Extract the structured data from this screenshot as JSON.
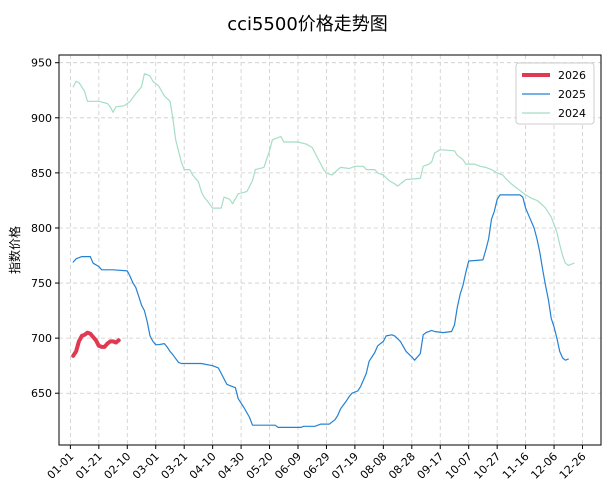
{
  "chart_data": {
    "type": "line",
    "title": "cci5500价格走势图",
    "xlabel": "",
    "ylabel": "指数价格",
    "ylim": [
      603,
      957
    ],
    "yticks": [
      650,
      700,
      750,
      800,
      850,
      900,
      950
    ],
    "x_tick_labels": [
      "01-01",
      "01-21",
      "02-10",
      "03-01",
      "03-21",
      "04-10",
      "04-30",
      "05-20",
      "06-09",
      "06-29",
      "07-19",
      "08-08",
      "08-28",
      "09-17",
      "10-07",
      "10-27",
      "11-16",
      "12-06",
      "12-26"
    ],
    "x_tick_days": [
      0,
      20,
      40,
      60,
      80,
      100,
      120,
      140,
      160,
      180,
      200,
      220,
      240,
      260,
      280,
      300,
      320,
      340,
      360
    ],
    "xlim": [
      -8,
      373
    ],
    "grid": true,
    "legend_position": "top-right",
    "series": [
      {
        "name": "2026",
        "color": "#e03a52",
        "width": 4,
        "points": [
          [
            2,
            684
          ],
          [
            4,
            688
          ],
          [
            6,
            697
          ],
          [
            8,
            702
          ],
          [
            10,
            703
          ],
          [
            12,
            705
          ],
          [
            14,
            704
          ],
          [
            16,
            701
          ],
          [
            18,
            698
          ],
          [
            20,
            693
          ],
          [
            22,
            692
          ],
          [
            24,
            692
          ],
          [
            26,
            695
          ],
          [
            28,
            697
          ],
          [
            30,
            697
          ],
          [
            32,
            696
          ],
          [
            34,
            698
          ]
        ]
      },
      {
        "name": "2025",
        "color": "#2382d4",
        "width": 1.2,
        "points": [
          [
            2,
            769
          ],
          [
            4,
            772
          ],
          [
            8,
            774
          ],
          [
            14,
            774
          ],
          [
            16,
            768
          ],
          [
            20,
            765
          ],
          [
            22,
            762
          ],
          [
            30,
            762
          ],
          [
            40,
            761
          ],
          [
            42,
            756
          ],
          [
            44,
            750
          ],
          [
            46,
            746
          ],
          [
            48,
            738
          ],
          [
            50,
            730
          ],
          [
            52,
            725
          ],
          [
            54,
            715
          ],
          [
            56,
            702
          ],
          [
            58,
            697
          ],
          [
            60,
            694
          ],
          [
            62,
            694
          ],
          [
            66,
            695
          ],
          [
            68,
            692
          ],
          [
            70,
            688
          ],
          [
            72,
            685
          ],
          [
            76,
            678
          ],
          [
            78,
            677
          ],
          [
            92,
            677
          ],
          [
            100,
            675
          ],
          [
            104,
            673
          ],
          [
            106,
            668
          ],
          [
            110,
            658
          ],
          [
            116,
            655
          ],
          [
            118,
            645
          ],
          [
            122,
            637
          ],
          [
            126,
            628
          ],
          [
            128,
            621
          ],
          [
            144,
            621
          ],
          [
            146,
            619
          ],
          [
            162,
            619
          ],
          [
            164,
            620
          ],
          [
            172,
            620
          ],
          [
            176,
            622
          ],
          [
            182,
            622
          ],
          [
            186,
            626
          ],
          [
            188,
            630
          ],
          [
            190,
            636
          ],
          [
            194,
            643
          ],
          [
            196,
            647
          ],
          [
            198,
            650
          ],
          [
            202,
            652
          ],
          [
            204,
            656
          ],
          [
            208,
            668
          ],
          [
            210,
            679
          ],
          [
            214,
            687
          ],
          [
            216,
            693
          ],
          [
            220,
            697
          ],
          [
            222,
            702
          ],
          [
            226,
            703
          ],
          [
            228,
            702
          ],
          [
            232,
            697
          ],
          [
            236,
            688
          ],
          [
            240,
            683
          ],
          [
            242,
            680
          ],
          [
            246,
            686
          ],
          [
            248,
            703
          ],
          [
            250,
            705
          ],
          [
            254,
            707
          ],
          [
            256,
            706
          ],
          [
            262,
            705
          ],
          [
            268,
            706
          ],
          [
            270,
            712
          ],
          [
            272,
            728
          ],
          [
            274,
            740
          ],
          [
            276,
            748
          ],
          [
            278,
            760
          ],
          [
            280,
            770
          ],
          [
            290,
            771
          ],
          [
            292,
            780
          ],
          [
            294,
            790
          ],
          [
            296,
            808
          ],
          [
            298,
            815
          ],
          [
            300,
            826
          ],
          [
            302,
            830
          ],
          [
            316,
            830
          ],
          [
            318,
            828
          ],
          [
            320,
            818
          ],
          [
            322,
            812
          ],
          [
            326,
            800
          ],
          [
            328,
            790
          ],
          [
            330,
            778
          ],
          [
            332,
            762
          ],
          [
            334,
            748
          ],
          [
            336,
            735
          ],
          [
            338,
            718
          ],
          [
            340,
            710
          ],
          [
            342,
            700
          ],
          [
            344,
            688
          ],
          [
            346,
            682
          ],
          [
            348,
            680
          ],
          [
            350,
            681
          ]
        ]
      },
      {
        "name": "2024",
        "color": "#a5dec4",
        "width": 1.2,
        "points": [
          [
            2,
            928
          ],
          [
            4,
            933
          ],
          [
            6,
            932
          ],
          [
            8,
            928
          ],
          [
            10,
            924
          ],
          [
            12,
            915
          ],
          [
            20,
            915
          ],
          [
            26,
            913
          ],
          [
            28,
            910
          ],
          [
            30,
            905
          ],
          [
            32,
            910
          ],
          [
            38,
            911
          ],
          [
            42,
            915
          ],
          [
            46,
            922
          ],
          [
            50,
            928
          ],
          [
            52,
            940
          ],
          [
            56,
            938
          ],
          [
            58,
            933
          ],
          [
            62,
            929
          ],
          [
            66,
            920
          ],
          [
            70,
            915
          ],
          [
            72,
            900
          ],
          [
            74,
            880
          ],
          [
            76,
            870
          ],
          [
            78,
            860
          ],
          [
            80,
            853
          ],
          [
            84,
            853
          ],
          [
            86,
            848
          ],
          [
            90,
            842
          ],
          [
            92,
            833
          ],
          [
            94,
            828
          ],
          [
            96,
            825
          ],
          [
            100,
            818
          ],
          [
            106,
            818
          ],
          [
            108,
            828
          ],
          [
            112,
            826
          ],
          [
            114,
            822
          ],
          [
            118,
            831
          ],
          [
            124,
            833
          ],
          [
            128,
            843
          ],
          [
            130,
            853
          ],
          [
            136,
            855
          ],
          [
            140,
            870
          ],
          [
            142,
            880
          ],
          [
            148,
            883
          ],
          [
            150,
            878
          ],
          [
            160,
            878
          ],
          [
            166,
            876
          ],
          [
            170,
            873
          ],
          [
            172,
            868
          ],
          [
            176,
            858
          ],
          [
            178,
            853
          ],
          [
            180,
            850
          ],
          [
            184,
            848
          ],
          [
            188,
            853
          ],
          [
            190,
            855
          ],
          [
            196,
            854
          ],
          [
            200,
            856
          ],
          [
            206,
            856
          ],
          [
            208,
            853
          ],
          [
            214,
            853
          ],
          [
            216,
            850
          ],
          [
            220,
            848
          ],
          [
            224,
            843
          ],
          [
            228,
            840
          ],
          [
            230,
            838
          ],
          [
            232,
            840
          ],
          [
            236,
            844
          ],
          [
            246,
            845
          ],
          [
            248,
            856
          ],
          [
            252,
            858
          ],
          [
            254,
            860
          ],
          [
            256,
            868
          ],
          [
            260,
            871
          ],
          [
            270,
            870
          ],
          [
            272,
            866
          ],
          [
            276,
            862
          ],
          [
            278,
            858
          ],
          [
            284,
            858
          ],
          [
            288,
            856
          ],
          [
            292,
            855
          ],
          [
            296,
            853
          ],
          [
            300,
            850
          ],
          [
            304,
            848
          ],
          [
            306,
            845
          ],
          [
            310,
            840
          ],
          [
            312,
            838
          ],
          [
            318,
            832
          ],
          [
            320,
            830
          ],
          [
            324,
            827
          ],
          [
            328,
            825
          ],
          [
            330,
            823
          ],
          [
            334,
            818
          ],
          [
            338,
            810
          ],
          [
            340,
            803
          ],
          [
            342,
            796
          ],
          [
            344,
            785
          ],
          [
            346,
            775
          ],
          [
            348,
            768
          ],
          [
            350,
            766
          ],
          [
            354,
            768
          ]
        ]
      }
    ]
  }
}
